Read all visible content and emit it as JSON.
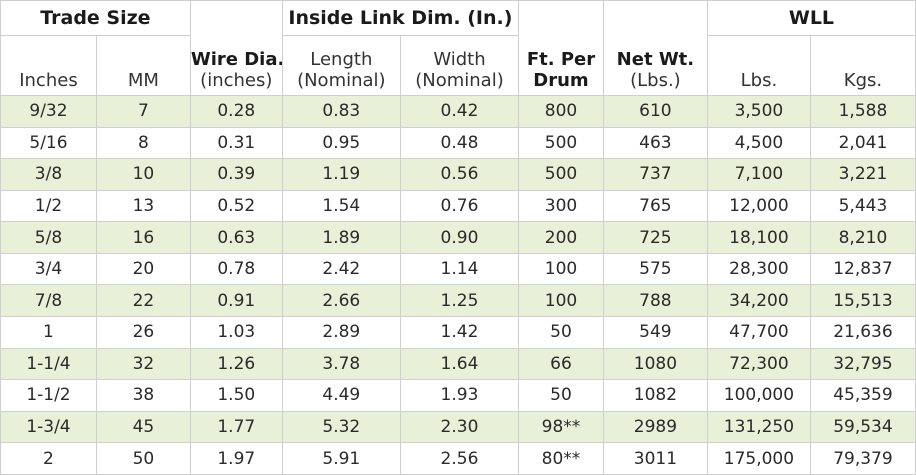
{
  "header": {
    "trade_size": "Trade Size",
    "inside_link": "Inside Link Dim. (In.)",
    "wll": "WLL",
    "inches": "Inches",
    "mm": "MM",
    "wire_dia_1": "Wire Dia.",
    "wire_dia_2": "(inches)",
    "length_1": "Length",
    "length_2": "(Nominal)",
    "width_1": "Width",
    "width_2": "(Nominal)",
    "ft_per_1": "Ft. Per",
    "ft_per_2": "Drum",
    "net_wt_1": "Net Wt.",
    "net_wt_2": "(Lbs.)",
    "lbs": "Lbs.",
    "kgs": "Kgs."
  },
  "rows": [
    [
      "9/32",
      "7",
      "0.28",
      "0.83",
      "0.42",
      "800",
      "610",
      "3,500",
      "1,588"
    ],
    [
      "5/16",
      "8",
      "0.31",
      "0.95",
      "0.48",
      "500",
      "463",
      "4,500",
      "2,041"
    ],
    [
      "3/8",
      "10",
      "0.39",
      "1.19",
      "0.56",
      "500",
      "737",
      "7,100",
      "3,221"
    ],
    [
      "1/2",
      "13",
      "0.52",
      "1.54",
      "0.76",
      "300",
      "765",
      "12,000",
      "5,443"
    ],
    [
      "5/8",
      "16",
      "0.63",
      "1.89",
      "0.90",
      "200",
      "725",
      "18,100",
      "8,210"
    ],
    [
      "3/4",
      "20",
      "0.78",
      "2.42",
      "1.14",
      "100",
      "575",
      "28,300",
      "12,837"
    ],
    [
      "7/8",
      "22",
      "0.91",
      "2.66",
      "1.25",
      "100",
      "788",
      "34,200",
      "15,513"
    ],
    [
      "1",
      "26",
      "1.03",
      "2.89",
      "1.42",
      "50",
      "549",
      "47,700",
      "21,636"
    ],
    [
      "1-1/4",
      "32",
      "1.26",
      "3.78",
      "1.64",
      "66",
      "1080",
      "72,300",
      "32,795"
    ],
    [
      "1-1/2",
      "38",
      "1.50",
      "4.49",
      "1.93",
      "50",
      "1082",
      "100,000",
      "45,359"
    ],
    [
      "1-3/4",
      "45",
      "1.77",
      "5.32",
      "2.30",
      "98**",
      "2989",
      "131,250",
      "59,534"
    ],
    [
      "2",
      "50",
      "1.97",
      "5.91",
      "2.56",
      "80**",
      "3011",
      "175,000",
      "79,379"
    ]
  ]
}
